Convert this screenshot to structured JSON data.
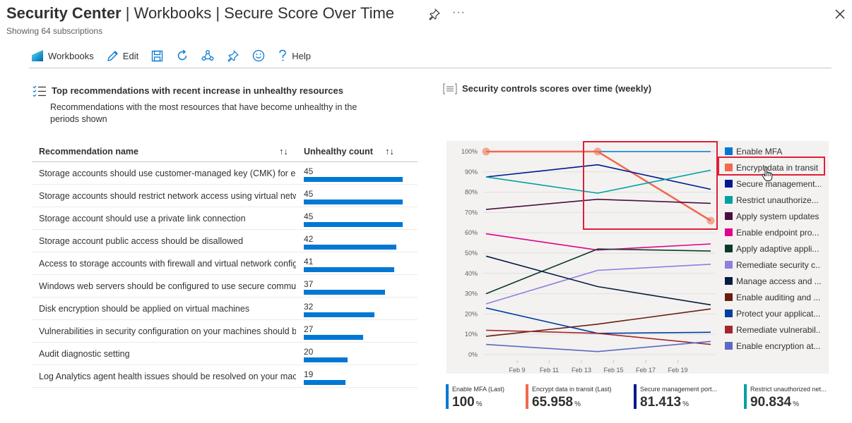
{
  "header": {
    "title_part1": "Security Center",
    "title_sep1": " | ",
    "title_part2": "Workbooks",
    "title_sep2": " | ",
    "title_part3": "Secure Score Over Time",
    "subtitle": "Showing 64 subscriptions",
    "more_label": "···"
  },
  "toolbar": {
    "workbooks_label": "Workbooks",
    "edit_label": "Edit",
    "help_label": "Help"
  },
  "left_panel": {
    "title": "Top recommendations with recent increase in unhealthy resources",
    "description": "Recommendations with the most resources that have become unhealthy in the periods shown",
    "columns": [
      "Recommendation name",
      "Unhealthy count"
    ],
    "sort_glyph": "↑↓",
    "rows": [
      {
        "name": "Storage accounts should use customer-managed key (CMK) for encryption",
        "count": 45
      },
      {
        "name": "Storage accounts should restrict network access using virtual network rules",
        "count": 45
      },
      {
        "name": "Storage account should use a private link connection",
        "count": 45
      },
      {
        "name": "Storage account public access should be disallowed",
        "count": 42
      },
      {
        "name": "Access to storage accounts with firewall and virtual network configurations should be restricted",
        "count": 41
      },
      {
        "name": "Windows web servers should be configured to use secure communication protocols",
        "count": 37
      },
      {
        "name": "Disk encryption should be applied on virtual machines",
        "count": 32
      },
      {
        "name": "Vulnerabilities in security configuration on your machines should be remediated",
        "count": 27
      },
      {
        "name": "Audit diagnostic setting",
        "count": 20
      },
      {
        "name": "Log Analytics agent health issues should be resolved on your machines",
        "count": 19
      }
    ],
    "max_count": 45
  },
  "right_panel": {
    "title": "Security controls scores over time (weekly)"
  },
  "chart_data": {
    "type": "line",
    "title": "",
    "xlabel": "",
    "ylabel": "",
    "x_ticks": [
      "Feb 9",
      "Feb 11",
      "Feb 13",
      "Feb 15",
      "Feb 17",
      "Feb 19"
    ],
    "y_ticks": [
      "100%",
      "90%",
      "80%",
      "70%",
      "60%",
      "50%",
      "40%",
      "30%",
      "20%",
      "10%",
      "0%"
    ],
    "ylim": [
      0,
      100
    ],
    "x_points": [
      "Feb 7",
      "Feb 14",
      "Feb 21"
    ],
    "grid": true,
    "legend_position": "right",
    "series": [
      {
        "name": "Enable MFA",
        "color": "#0078d4",
        "values": [
          100,
          100,
          100
        ]
      },
      {
        "name": "Encrypt data in transit",
        "color": "#f1694f",
        "values": [
          100,
          100,
          65.958
        ],
        "markers": true
      },
      {
        "name": "Secure management ports",
        "color": "#00188f",
        "values": [
          87.5,
          93.5,
          81.413
        ]
      },
      {
        "name": "Restrict unauthorized network access",
        "color": "#00a1a1",
        "values": [
          87.5,
          79.5,
          90.834
        ]
      },
      {
        "name": "Apply system updates",
        "color": "#4c0e3f",
        "values": [
          71.5,
          76.5,
          74.5
        ]
      },
      {
        "name": "Enable endpoint protection",
        "color": "#e3008c",
        "values": [
          59.5,
          51.5,
          54.5
        ]
      },
      {
        "name": "Apply adaptive application control",
        "color": "#0a3b2a",
        "values": [
          30,
          52,
          51
        ]
      },
      {
        "name": "Remediate security configurations",
        "color": "#8f7ee0",
        "values": [
          25,
          41.5,
          44.5
        ]
      },
      {
        "name": "Manage access and permissions",
        "color": "#061f3f",
        "values": [
          48.5,
          33.5,
          24.5
        ]
      },
      {
        "name": "Enable auditing and logging",
        "color": "#6a1e0e",
        "values": [
          9,
          15,
          22.5
        ]
      },
      {
        "name": "Protect your applications",
        "color": "#003f9e",
        "values": [
          23,
          10.5,
          11
        ]
      },
      {
        "name": "Remediate vulnerabilities",
        "color": "#a4262c",
        "values": [
          12,
          10.5,
          5
        ]
      },
      {
        "name": "Enable encryption at rest",
        "color": "#5c6ac4",
        "values": [
          5,
          1.5,
          6.5
        ]
      }
    ]
  },
  "legend_labels": [
    "Enable MFA",
    "Encrypt data in transit",
    "Secure management...",
    "Restrict unauthorize...",
    "Apply system updates",
    "Enable endpoint pro...",
    "Apply adaptive appli...",
    "Remediate security c...",
    "Manage access and ...",
    "Enable auditing and ...",
    "Protect your applicat...",
    "Remediate vulnerabil...",
    "Enable encryption at..."
  ],
  "tiles": [
    {
      "label": "Enable MFA (Last)",
      "value": "100",
      "unit": "%",
      "color": "#0078d4"
    },
    {
      "label": "Encrypt data in transit (Last)",
      "value": "65.958",
      "unit": "%",
      "color": "#f1694f"
    },
    {
      "label": "Secure management port...",
      "value": "81.413",
      "unit": "%",
      "color": "#00188f"
    },
    {
      "label": "Restrict unauthorized net...",
      "value": "90.834",
      "unit": "%",
      "color": "#00a1a1"
    }
  ]
}
